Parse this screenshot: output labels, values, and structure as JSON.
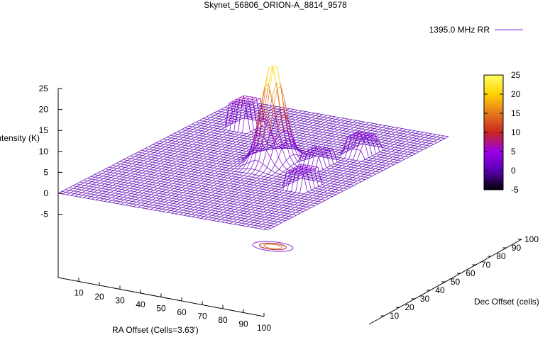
{
  "chart_data": {
    "type": "surface",
    "title": "Skynet_56806_ORION-A_8814_9578",
    "legend_position": "top-right",
    "series": [
      {
        "name": "1395.0 MHz RR",
        "color": "#8a2be2"
      }
    ],
    "axes": {
      "z": {
        "label": "Intensity (K)",
        "range": [
          -5,
          25
        ],
        "ticks": [
          "25",
          "20",
          "15",
          "10",
          "5",
          "0",
          "-5"
        ]
      },
      "x": {
        "label": "RA Offset (Cells=3.63')",
        "range": [
          0,
          100
        ],
        "ticks": [
          "10",
          "20",
          "30",
          "40",
          "50",
          "60",
          "70",
          "80",
          "90",
          "100"
        ]
      },
      "y": {
        "label": "Dec Offset (cells)",
        "range": [
          0,
          100
        ],
        "ticks": [
          "10",
          "20",
          "30",
          "40",
          "50",
          "60",
          "70",
          "80",
          "90",
          "100"
        ]
      }
    },
    "colorbar": {
      "range": [
        -5,
        25
      ],
      "ticks": [
        "25",
        "20",
        "15",
        "10",
        "5",
        "0",
        "-5"
      ],
      "colors": [
        "#000000",
        "#5a00b4",
        "#9b00e6",
        "#c8261e",
        "#e6781e",
        "#ffd200",
        "#ffff64"
      ]
    },
    "peak": {
      "x": 55,
      "y": 55,
      "value": 24
    },
    "features": [
      {
        "x": 55,
        "y": 55,
        "amplitude": 24,
        "kind": "peak"
      },
      {
        "x": 55,
        "y": 55,
        "amplitude": 8,
        "kind": "plateau"
      },
      {
        "x": 20,
        "y": 80,
        "amplitude": 6,
        "kind": "plateau"
      },
      {
        "x": 80,
        "y": 75,
        "amplitude": 4,
        "kind": "plateau"
      },
      {
        "x": 82,
        "y": 40,
        "amplitude": 4,
        "kind": "plateau"
      },
      {
        "x": 72,
        "y": 60,
        "amplitude": 3,
        "kind": "plateau"
      }
    ],
    "grid": false
  }
}
